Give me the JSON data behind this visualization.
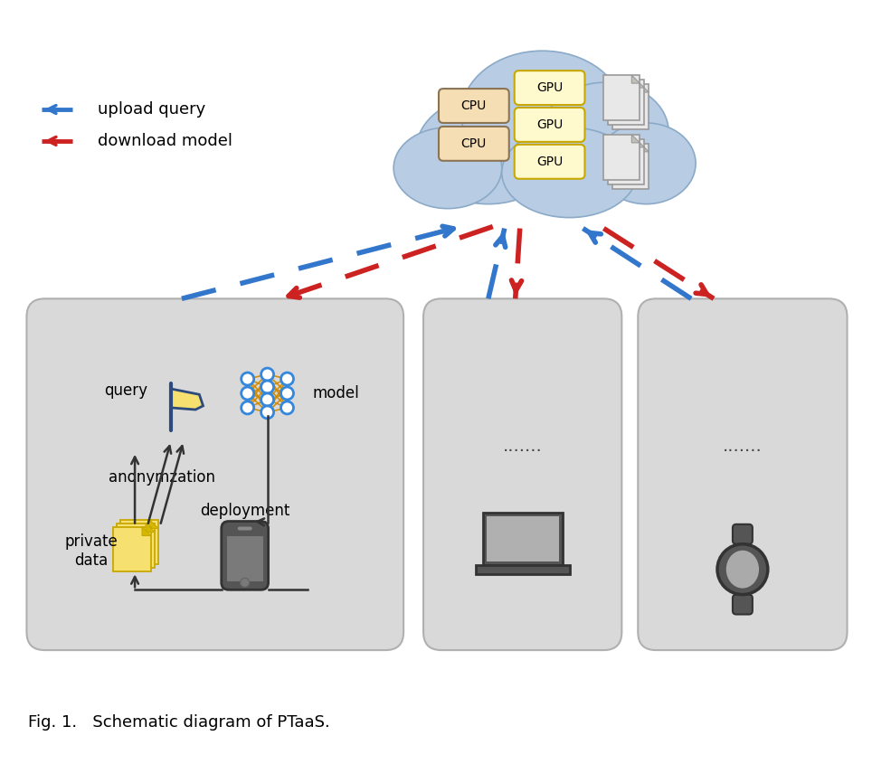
{
  "bg_color": "#ffffff",
  "cloud_color": "#b8cce4",
  "cloud_edge_color": "#8baac8",
  "box_color": "#d9d9d9",
  "box_edge_color": "#b0b0b0",
  "cpu_box_color": "#f5deb3",
  "cpu_box_edge": "#8b7355",
  "gpu_box_color": "#fffacd",
  "gpu_box_edge": "#c8a800",
  "doc_color": "#e8e8e8",
  "doc_edge": "#999999",
  "upload_color": "#3377cc",
  "download_color": "#cc2222",
  "arrow_color": "#333333",
  "flag_color": "#f5e070",
  "flag_edge": "#2c4a7c",
  "flag_pole": "#2c4a7c",
  "files_color": "#f5e070",
  "files_edge": "#c8a800",
  "phone_color": "#555555",
  "device_color": "#555555",
  "title": "Fig. 1.   Schematic diagram of PTaaS.",
  "legend_upload": "upload query",
  "legend_download": "download model",
  "label_query": "query",
  "label_model": "model",
  "label_anon": "anonymzation",
  "label_private": "private\ndata",
  "label_deploy": "deployment",
  "label_dots": ".......",
  "label_cpu": "CPU",
  "label_gpu": "GPU",
  "nn_node_color": "#3388dd",
  "nn_edge_color": "#cc8800"
}
